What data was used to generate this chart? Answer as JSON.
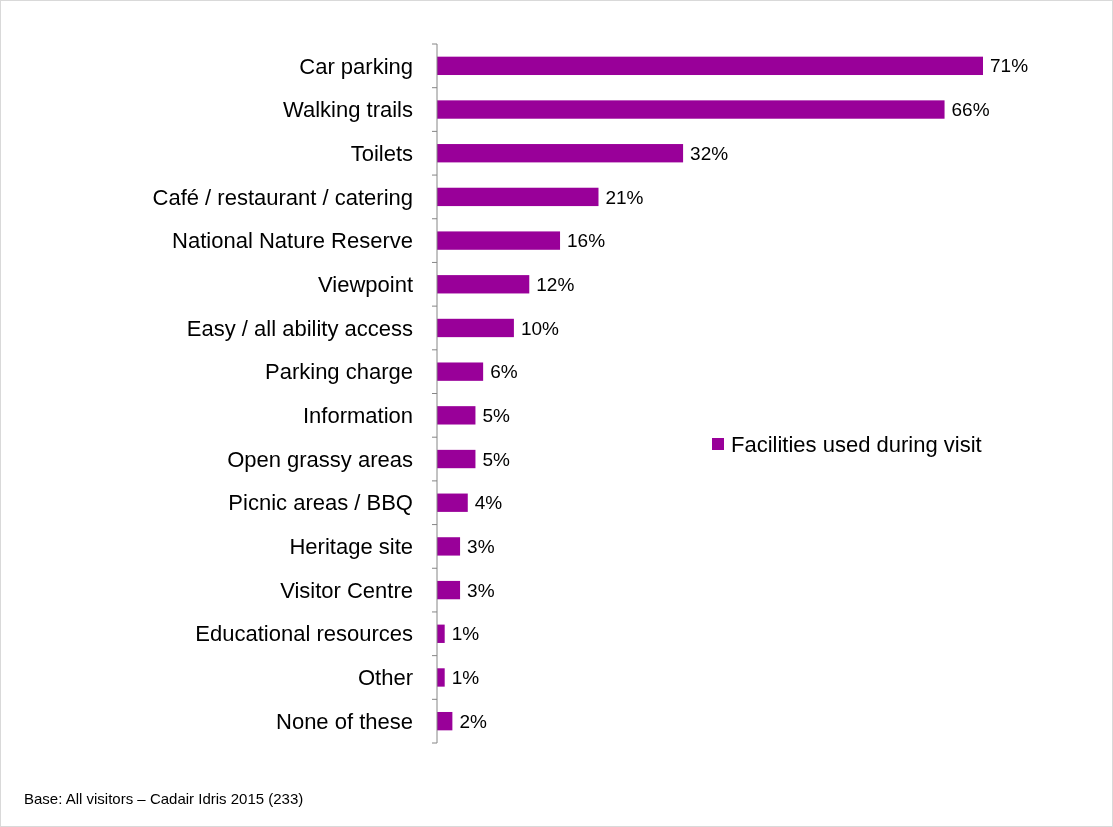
{
  "chart_data": {
    "type": "bar",
    "orientation": "horizontal",
    "categories": [
      "Car parking",
      "Walking trails",
      "Toilets",
      "Café / restaurant / catering",
      "National Nature Reserve",
      "Viewpoint",
      "Easy / all ability access",
      "Parking charge",
      "Information",
      "Open grassy areas",
      "Picnic areas / BBQ",
      "Heritage site",
      "Visitor Centre",
      "Educational resources",
      "Other",
      "None of these"
    ],
    "series": [
      {
        "name": "Facilities used during visit",
        "color": "#990099",
        "values": [
          71,
          66,
          32,
          21,
          16,
          12,
          10,
          6,
          5,
          5,
          4,
          3,
          3,
          1,
          1,
          2
        ],
        "value_labels": [
          "71%",
          "66%",
          "32%",
          "21%",
          "16%",
          "12%",
          "10%",
          "6%",
          "5%",
          "5%",
          "4%",
          "3%",
          "3%",
          "1%",
          "1%",
          "2%"
        ]
      }
    ],
    "legend": "right",
    "annotations": [
      "Base: All visitors – Cadair Idris 2015 (233)"
    ]
  }
}
